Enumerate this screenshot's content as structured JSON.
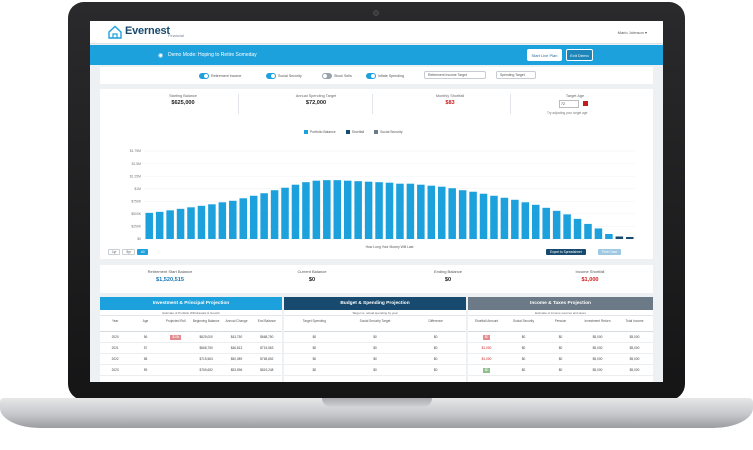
{
  "app": {
    "name": "Evernest",
    "tagline": "Financial",
    "user_menu": "Mario Johnson ▾"
  },
  "demo_bar": {
    "text": "Demo Mode: Hoping to Retire Someday",
    "start_button": "Start Live Plan",
    "exit_button": "Exit Demo"
  },
  "toggles": [
    {
      "label": "Retirement Income",
      "on": true
    },
    {
      "label": "Social Security",
      "on": true
    },
    {
      "label": "Stock Sells",
      "on": false
    },
    {
      "label": "Inflate Spending",
      "on": true
    }
  ],
  "selects": [
    "Retirement Income Target",
    "Spending Target"
  ],
  "summary": {
    "starting_balance_label": "Starting Balance",
    "starting_balance": "$625,000",
    "annual_spending_label": "Annual Spending Target",
    "annual_spending": "$72,000",
    "monthly_shortfall_label": "Monthly Shortfall",
    "monthly_shortfall": "$83",
    "target_age_label": "Target Age",
    "target_age": "72",
    "target_age_note": "Try adjusting your target age"
  },
  "chart_data": {
    "type": "bar",
    "legend": [
      {
        "name": "Portfolio Balance",
        "color": "#1da1dc"
      },
      {
        "name": "Shortfall",
        "color": "#174a6e"
      },
      {
        "name": "Social Security",
        "color": "#6b7a86"
      }
    ],
    "y_ticks": [
      "$1.75M",
      "$1.5M",
      "$1.25M",
      "$1M",
      "$750K",
      "$500K",
      "$250K",
      "$0"
    ],
    "xlabel": "How Long Your Money Will Last",
    "values": [
      0.52,
      0.54,
      0.57,
      0.6,
      0.63,
      0.66,
      0.69,
      0.73,
      0.76,
      0.81,
      0.86,
      0.91,
      0.97,
      1.02,
      1.08,
      1.13,
      1.16,
      1.17,
      1.17,
      1.16,
      1.15,
      1.14,
      1.13,
      1.12,
      1.1,
      1.1,
      1.08,
      1.06,
      1.04,
      1.01,
      0.97,
      0.94,
      0.9,
      0.86,
      0.82,
      0.78,
      0.73,
      0.68,
      0.62,
      0.56,
      0.49,
      0.4,
      0.3,
      0.21,
      0.1,
      0.05,
      0.04
    ],
    "ylim": [
      0,
      1.75
    ]
  },
  "chart_controls": {
    "zoom": [
      "1yr",
      "5yr",
      "All"
    ],
    "export_label": "Export to Spreadsheet",
    "print_label": "Print Chart"
  },
  "balances": [
    {
      "label": "Retirement Start Balance",
      "value": "$1,520,515",
      "color": "blue"
    },
    {
      "label": "Current Balance",
      "value": "$0",
      "color": "plain"
    },
    {
      "label": "Ending Balance",
      "value": "$0",
      "color": "plain"
    },
    {
      "label": "Income Shortfall",
      "value": "$1,000",
      "color": "red"
    }
  ],
  "tables": {
    "investment": {
      "title": "Investment & Principal Projection",
      "subtitle": "Estimate of Portfolio Withdrawals & Growth",
      "columns": [
        "Year",
        "Age",
        "Projected Roll",
        "Beginning Balance",
        "Annual Change",
        "End Balance"
      ],
      "rows": [
        [
          "2020",
          "56",
          "$10k",
          "$625,000",
          "$43,750",
          "$668,750"
        ],
        [
          "2021",
          "57",
          "",
          "$668,750",
          "$46,813",
          "$715,563"
        ],
        [
          "2022",
          "58",
          "",
          "$715,563",
          "$50,089",
          "$765,652"
        ],
        [
          "2023",
          "59",
          "",
          "$765,652",
          "$53,596",
          "$819,248"
        ]
      ]
    },
    "budget": {
      "title": "Budget & Spending Projection",
      "subtitle": "Target vs. actual spending by year",
      "columns": [
        "Target Spending",
        "Social Security Target",
        "Difference"
      ],
      "rows": [
        [
          "$0",
          "$0",
          "$0"
        ],
        [
          "$0",
          "$0",
          "$0"
        ],
        [
          "$0",
          "$0",
          "$0"
        ],
        [
          "$0",
          "$0",
          "$0"
        ]
      ]
    },
    "income": {
      "title": "Income & Taxes Projection",
      "subtitle": "Estimate of income sources and taxes",
      "columns": [
        "Shortfall Amount",
        "Social Security",
        "Pension",
        "Investment Return",
        "Total Income"
      ],
      "rows": [
        [
          "$0",
          "$0",
          "$0",
          "$5,000",
          "$5,000"
        ],
        [
          "$1,000",
          "$0",
          "$0",
          "$5,000",
          "$5,000"
        ],
        [
          "$1,000",
          "$0",
          "$0",
          "$5,000",
          "$5,000"
        ],
        [
          "$0",
          "$0",
          "$0",
          "$5,000",
          "$5,000"
        ]
      ]
    }
  }
}
